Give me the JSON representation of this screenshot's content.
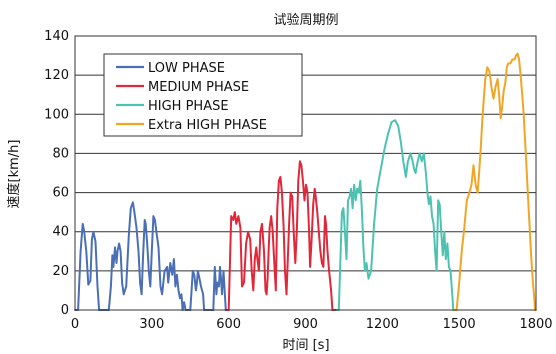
{
  "chart_data": {
    "type": "line",
    "title": "试验周期例",
    "xlabel": "时间 [s]",
    "ylabel": "速度[km/h]",
    "xlim": [
      0,
      1800
    ],
    "ylim": [
      0,
      140
    ],
    "xticks": [
      0,
      300,
      600,
      900,
      1200,
      1500,
      1800
    ],
    "yticks": [
      0,
      20,
      40,
      60,
      80,
      100,
      120,
      140
    ],
    "grid": "horizontal",
    "legend_position": "top-left",
    "series": [
      {
        "name": "LOW PHASE",
        "color": "#4a6fb5",
        "x": [
          0,
          12,
          22,
          30,
          36,
          44,
          52,
          60,
          66,
          72,
          80,
          88,
          94,
          100,
          108,
          118,
          132,
          140,
          146,
          150,
          156,
          162,
          166,
          172,
          178,
          184,
          190,
          200,
          210,
          218,
          226,
          232,
          240,
          248,
          254,
          260,
          266,
          272,
          276,
          282,
          288,
          294,
          300,
          306,
          312,
          318,
          326,
          334,
          340,
          350,
          360,
          364,
          372,
          380,
          386,
          392,
          398,
          404,
          410,
          416,
          420,
          426,
          432,
          440,
          450,
          456,
          460,
          466,
          472,
          476,
          480,
          486,
          492,
          500,
          504,
          510,
          516,
          524,
          530,
          536,
          540,
          546,
          552,
          556,
          562,
          566,
          570,
          574,
          580,
          589
        ],
        "y": [
          0,
          0,
          30,
          44,
          40,
          30,
          13,
          15,
          36,
          40,
          35,
          12,
          0,
          0,
          0,
          0,
          0,
          12,
          28,
          22,
          32,
          24,
          30,
          34,
          30,
          14,
          8,
          12,
          38,
          52,
          55,
          50,
          42,
          30,
          14,
          8,
          28,
          46,
          44,
          34,
          20,
          12,
          30,
          48,
          46,
          40,
          32,
          12,
          8,
          20,
          22,
          14,
          24,
          18,
          26,
          12,
          18,
          10,
          6,
          8,
          0,
          4,
          0,
          0,
          0,
          12,
          20,
          18,
          10,
          14,
          20,
          16,
          12,
          8,
          0,
          0,
          0,
          0,
          0,
          0,
          0,
          22,
          8,
          14,
          12,
          22,
          16,
          8,
          20,
          0
        ]
      },
      {
        "name": "MEDIUM PHASE",
        "color": "#e0283a",
        "x": [
          589,
          600,
          610,
          618,
          624,
          630,
          638,
          646,
          652,
          660,
          668,
          676,
          684,
          690,
          696,
          702,
          708,
          712,
          718,
          724,
          730,
          738,
          744,
          748,
          752,
          756,
          760,
          766,
          772,
          778,
          784,
          790,
          796,
          802,
          808,
          814,
          820,
          826,
          832,
          836,
          842,
          848,
          854,
          860,
          866,
          872,
          878,
          884,
          890,
          896,
          902,
          908,
          914,
          918,
          924,
          930,
          936,
          940,
          946,
          952,
          958,
          964,
          970,
          976,
          980,
          986,
          992,
          1000,
          1005,
          1022
        ],
        "y": [
          0,
          0,
          48,
          46,
          50,
          44,
          48,
          42,
          12,
          14,
          34,
          40,
          36,
          20,
          10,
          26,
          32,
          26,
          20,
          40,
          44,
          30,
          10,
          8,
          16,
          30,
          42,
          48,
          40,
          24,
          10,
          52,
          66,
          68,
          60,
          44,
          20,
          8,
          30,
          44,
          60,
          58,
          40,
          24,
          40,
          66,
          76,
          74,
          66,
          56,
          64,
          60,
          40,
          22,
          36,
          54,
          62,
          58,
          50,
          40,
          30,
          24,
          22,
          48,
          44,
          30,
          20,
          10,
          0,
          0
        ]
      },
      {
        "name": "HIGH PHASE",
        "color": "#4ec2b2",
        "x": [
          1022,
          1030,
          1036,
          1042,
          1048,
          1054,
          1060,
          1066,
          1072,
          1078,
          1084,
          1090,
          1096,
          1102,
          1108,
          1114,
          1120,
          1126,
          1132,
          1138,
          1146,
          1156,
          1168,
          1180,
          1194,
          1208,
          1222,
          1236,
          1250,
          1262,
          1272,
          1282,
          1292,
          1300,
          1310,
          1318,
          1324,
          1330,
          1338,
          1346,
          1354,
          1362,
          1370,
          1376,
          1382,
          1388,
          1394,
          1400,
          1406,
          1412,
          1418,
          1424,
          1430,
          1436,
          1442,
          1448,
          1454,
          1460,
          1466,
          1472,
          1477
        ],
        "y": [
          0,
          0,
          24,
          50,
          52,
          40,
          26,
          56,
          58,
          62,
          52,
          64,
          56,
          62,
          60,
          66,
          52,
          32,
          20,
          24,
          16,
          20,
          44,
          62,
          72,
          82,
          90,
          96,
          97,
          94,
          86,
          76,
          68,
          76,
          80,
          76,
          72,
          70,
          76,
          80,
          76,
          80,
          70,
          60,
          54,
          58,
          48,
          44,
          30,
          20,
          56,
          54,
          40,
          28,
          40,
          26,
          34,
          22,
          20,
          10,
          0
        ]
      },
      {
        "name": "Extra HIGH PHASE",
        "color": "#f0a624",
        "x": [
          1477,
          1490,
          1500,
          1510,
          1520,
          1530,
          1540,
          1548,
          1556,
          1564,
          1572,
          1578,
          1584,
          1590,
          1596,
          1602,
          1610,
          1618,
          1626,
          1634,
          1642,
          1650,
          1656,
          1662,
          1668,
          1674,
          1680,
          1686,
          1692,
          1700,
          1708,
          1716,
          1722,
          1728,
          1734,
          1740,
          1746,
          1752,
          1756,
          1760,
          1764,
          1768,
          1772,
          1776,
          1780,
          1784,
          1788,
          1792,
          1796,
          1800
        ],
        "y": [
          0,
          0,
          14,
          30,
          42,
          56,
          60,
          64,
          74,
          64,
          60,
          70,
          82,
          96,
          108,
          118,
          124,
          122,
          114,
          108,
          114,
          118,
          110,
          98,
          104,
          112,
          116,
          124,
          126,
          126,
          128,
          128,
          130,
          131,
          128,
          120,
          110,
          100,
          90,
          80,
          70,
          60,
          50,
          40,
          30,
          22,
          14,
          8,
          0,
          0
        ]
      }
    ]
  }
}
